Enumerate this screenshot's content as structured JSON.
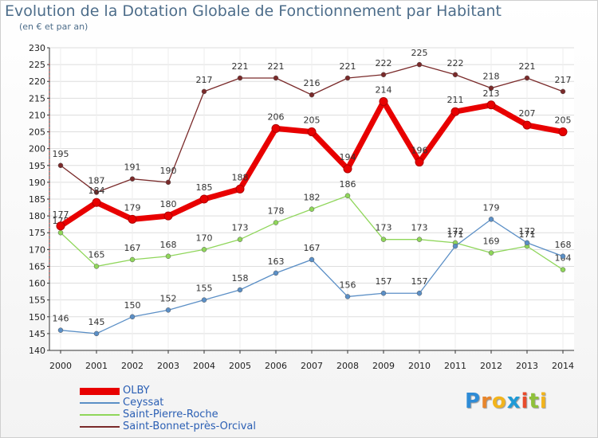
{
  "title": "Evolution de la Dotation Globale de Fonctionnement par Habitant",
  "subtitle": "(en € et par an)",
  "logo": {
    "letters": [
      "P",
      "r",
      "o",
      "x",
      "i",
      "t",
      "i"
    ],
    "colors": [
      "#2e8bd6",
      "#e8852b",
      "#f2b41c",
      "#1f9ad6",
      "#e84b2b",
      "#8fc13a",
      "#f2b41c"
    ]
  },
  "chart_data": {
    "type": "line",
    "x": [
      "2000",
      "2001",
      "2002",
      "2003",
      "2004",
      "2005",
      "2006",
      "2007",
      "2008",
      "2009",
      "2010",
      "2011",
      "2012",
      "2013",
      "2014"
    ],
    "ylim": [
      140,
      230
    ],
    "yticks": [
      140,
      145,
      150,
      155,
      160,
      165,
      170,
      175,
      180,
      185,
      190,
      195,
      200,
      205,
      210,
      215,
      220,
      225,
      230
    ],
    "grid": true,
    "legend_position": "bottom-left",
    "series": [
      {
        "name": "OLBY",
        "color": "#e80000",
        "width": 7,
        "values": [
          177,
          184,
          179,
          180,
          185,
          188,
          206,
          205,
          194,
          214,
          196,
          211,
          213,
          207,
          205
        ]
      },
      {
        "name": "Ceyssat",
        "color": "#5b8fc6",
        "width": 1.3,
        "values": [
          146,
          145,
          150,
          152,
          155,
          158,
          163,
          167,
          156,
          157,
          157,
          171,
          179,
          172,
          168
        ]
      },
      {
        "name": "Saint-Pierre-Roche",
        "color": "#8fd65a",
        "width": 1.3,
        "values": [
          175,
          165,
          167,
          168,
          170,
          173,
          178,
          182,
          186,
          173,
          173,
          172,
          169,
          171,
          164
        ]
      },
      {
        "name": "Saint-Bonnet-près-Orcival",
        "color": "#7a2a2a",
        "width": 1.3,
        "values": [
          195,
          187,
          191,
          190,
          217,
          221,
          221,
          216,
          221,
          222,
          225,
          222,
          218,
          221,
          217
        ]
      }
    ]
  }
}
